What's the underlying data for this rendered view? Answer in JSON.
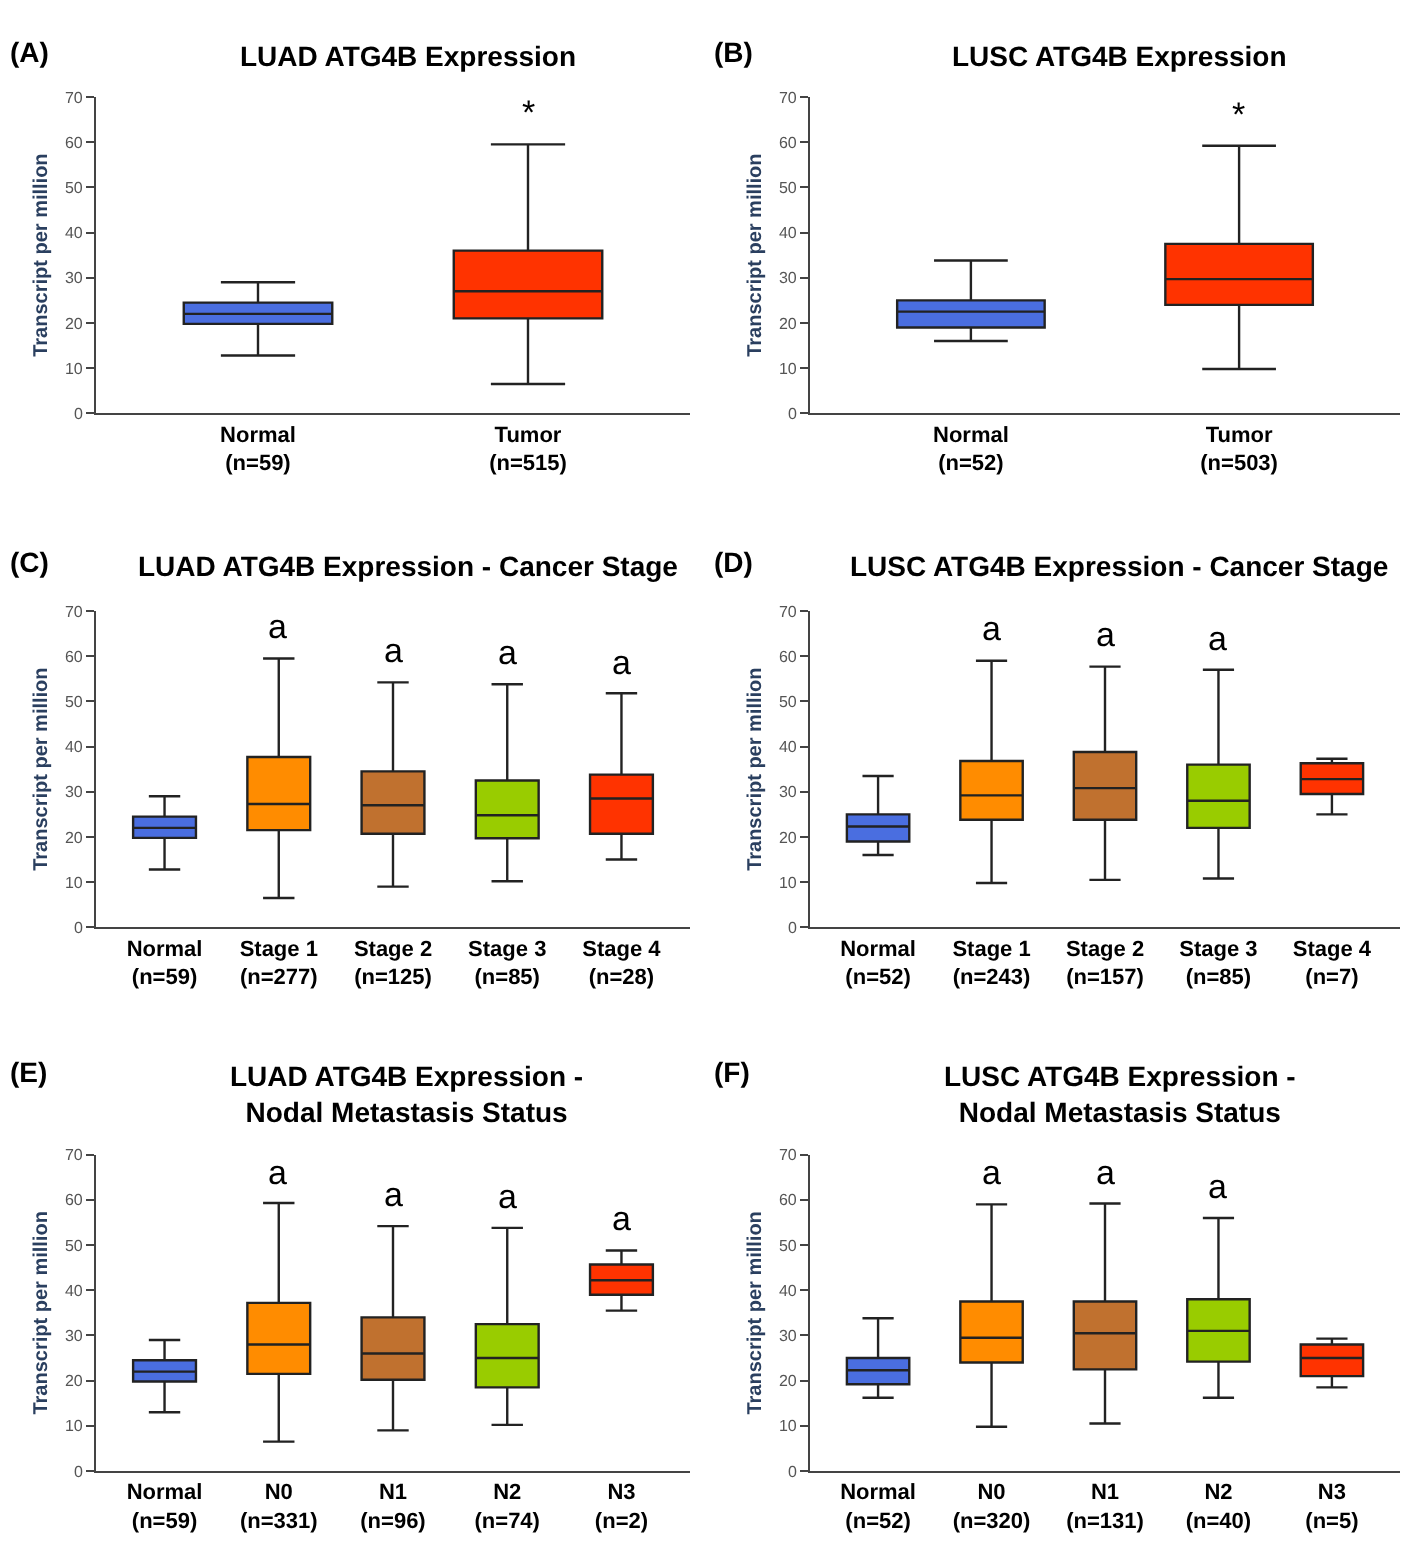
{
  "chart_data": [
    {
      "type": "box",
      "title": "LUAD ATG4B Expression",
      "ylabel": "Transcript per million",
      "categories": [
        "Normal\n(n=59)",
        "Tumor\n(n=515)"
      ],
      "colors": [
        "#4a6ee0",
        "#ff3300"
      ],
      "ylim": [
        0,
        70
      ],
      "yticks": [
        0,
        10,
        20,
        30,
        40,
        50,
        60,
        70
      ],
      "boxes": [
        {
          "low": 12.8,
          "q1": 19.8,
          "median": 22,
          "q3": 24.5,
          "high": 29
        },
        {
          "low": 6.5,
          "q1": 21,
          "median": 27,
          "q3": 36,
          "high": 59.5
        }
      ],
      "annotations": [
        "(A)",
        "*"
      ]
    },
    {
      "type": "box",
      "title": "LUSC ATG4B Expression",
      "ylabel": "Transcript per million",
      "categories": [
        "Normal\n(n=52)",
        "Tumor\n(n=503)"
      ],
      "colors": [
        "#4a6ee0",
        "#ff3300"
      ],
      "ylim": [
        0,
        70
      ],
      "yticks": [
        0,
        10,
        20,
        30,
        40,
        50,
        60,
        70
      ],
      "boxes": [
        {
          "low": 16,
          "q1": 19,
          "median": 22.5,
          "q3": 25,
          "high": 33.8
        },
        {
          "low": 9.8,
          "q1": 24,
          "median": 29.7,
          "q3": 37.5,
          "high": 59.2
        }
      ],
      "annotations": [
        "(B)",
        "*"
      ]
    },
    {
      "type": "box",
      "title": "LUAD ATG4B Expression - Cancer Stage",
      "ylabel": "Transcript per million",
      "categories": [
        "Normal\n(n=59)",
        "Stage 1\n(n=277)",
        "Stage 2\n(n=125)",
        "Stage 3\n(n=85)",
        "Stage 4\n(n=28)"
      ],
      "colors": [
        "#4a6ee0",
        "#ff8c00",
        "#c0712f",
        "#99cc00",
        "#ff3300"
      ],
      "ylim": [
        0,
        70
      ],
      "yticks": [
        0,
        10,
        20,
        30,
        40,
        50,
        60,
        70
      ],
      "boxes": [
        {
          "low": 12.8,
          "q1": 19.8,
          "median": 22,
          "q3": 24.5,
          "high": 29
        },
        {
          "low": 6.5,
          "q1": 21.5,
          "median": 27.3,
          "q3": 37.7,
          "high": 59.5
        },
        {
          "low": 9,
          "q1": 20.7,
          "median": 27,
          "q3": 34.5,
          "high": 54.2
        },
        {
          "low": 10.2,
          "q1": 19.7,
          "median": 24.8,
          "q3": 32.5,
          "high": 53.8
        },
        {
          "low": 15,
          "q1": 20.7,
          "median": 28.5,
          "q3": 33.8,
          "high": 51.8
        }
      ],
      "annotations": [
        "(C)",
        "a",
        "a",
        "a",
        "a"
      ]
    },
    {
      "type": "box",
      "title": "LUSC ATG4B Expression - Cancer Stage",
      "ylabel": "Transcript per million",
      "categories": [
        "Normal\n(n=52)",
        "Stage 1\n(n=243)",
        "Stage 2\n(n=157)",
        "Stage 3\n(n=85)",
        "Stage 4\n(n=7)"
      ],
      "colors": [
        "#4a6ee0",
        "#ff8c00",
        "#c0712f",
        "#99cc00",
        "#ff3300"
      ],
      "ylim": [
        0,
        70
      ],
      "yticks": [
        0,
        10,
        20,
        30,
        40,
        50,
        60,
        70
      ],
      "boxes": [
        {
          "low": 16,
          "q1": 19,
          "median": 22.3,
          "q3": 25,
          "high": 33.5
        },
        {
          "low": 9.8,
          "q1": 23.8,
          "median": 29.2,
          "q3": 36.8,
          "high": 59
        },
        {
          "low": 10.5,
          "q1": 23.8,
          "median": 30.8,
          "q3": 38.8,
          "high": 57.7
        },
        {
          "low": 10.8,
          "q1": 22,
          "median": 28,
          "q3": 36,
          "high": 57
        },
        {
          "low": 25,
          "q1": 29.5,
          "median": 32.8,
          "q3": 36.3,
          "high": 37.3
        }
      ],
      "annotations": [
        "(D)",
        "a",
        "a",
        "a"
      ]
    },
    {
      "type": "box",
      "title": "LUAD ATG4B Expression -\nNodal Metastasis Status",
      "ylabel": "Transcript per million",
      "categories": [
        "Normal\n(n=59)",
        "N0\n(n=331)",
        "N1\n(n=96)",
        "N2\n(n=74)",
        "N3\n(n=2)"
      ],
      "colors": [
        "#4a6ee0",
        "#ff8c00",
        "#c0712f",
        "#99cc00",
        "#ff3300"
      ],
      "ylim": [
        0,
        70
      ],
      "yticks": [
        0,
        10,
        20,
        30,
        40,
        50,
        60,
        70
      ],
      "boxes": [
        {
          "low": 13,
          "q1": 19.8,
          "median": 22,
          "q3": 24.5,
          "high": 29
        },
        {
          "low": 6.5,
          "q1": 21.5,
          "median": 28,
          "q3": 37.2,
          "high": 59.3
        },
        {
          "low": 9,
          "q1": 20.2,
          "median": 26,
          "q3": 34,
          "high": 54.2
        },
        {
          "low": 10.2,
          "q1": 18.5,
          "median": 25,
          "q3": 32.5,
          "high": 53.8
        },
        {
          "low": 35.5,
          "q1": 39,
          "median": 42.2,
          "q3": 45.7,
          "high": 48.8
        }
      ],
      "annotations": [
        "(E)",
        "a",
        "a",
        "a",
        "a"
      ]
    },
    {
      "type": "box",
      "title": "LUSC ATG4B Expression -\nNodal Metastasis Status",
      "ylabel": "Transcript per million",
      "categories": [
        "Normal\n(n=52)",
        "N0\n(n=320)",
        "N1\n(n=131)",
        "N2\n(n=40)",
        "N3\n(n=5)"
      ],
      "colors": [
        "#4a6ee0",
        "#ff8c00",
        "#c0712f",
        "#99cc00",
        "#ff3300"
      ],
      "ylim": [
        0,
        70
      ],
      "yticks": [
        0,
        10,
        20,
        30,
        40,
        50,
        60,
        70
      ],
      "boxes": [
        {
          "low": 16.2,
          "q1": 19.2,
          "median": 22.3,
          "q3": 25,
          "high": 33.8
        },
        {
          "low": 9.8,
          "q1": 24,
          "median": 29.5,
          "q3": 37.5,
          "high": 59
        },
        {
          "low": 10.5,
          "q1": 22.5,
          "median": 30.5,
          "q3": 37.5,
          "high": 59.2
        },
        {
          "low": 16.2,
          "q1": 24.2,
          "median": 31,
          "q3": 38,
          "high": 56
        },
        {
          "low": 18.5,
          "q1": 21,
          "median": 25,
          "q3": 28,
          "high": 29.3
        }
      ],
      "annotations": [
        "(F)",
        "a",
        "a",
        "a"
      ]
    }
  ]
}
